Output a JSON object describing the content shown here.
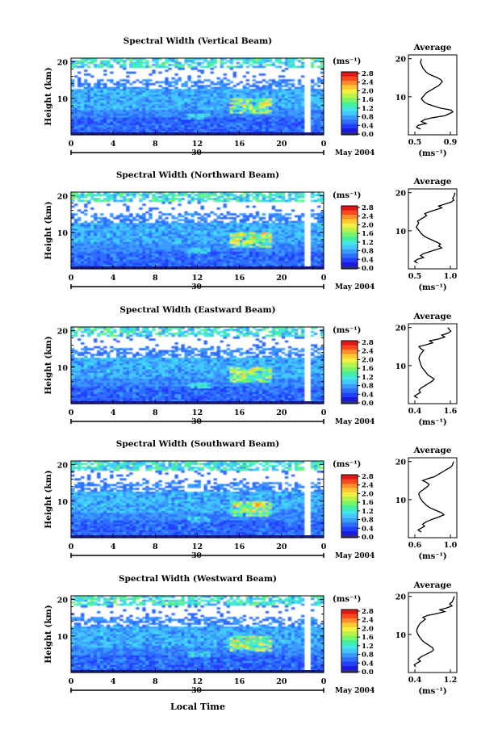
{
  "chart_data": [
    {
      "type": "heatmap",
      "title": "Spectral Width (Vertical Beam)",
      "ylabel": "Height (km)",
      "x_ticks": [
        "0",
        "4",
        "8",
        "12",
        "16",
        "20",
        "0"
      ],
      "y_ticks": [
        "20",
        "10"
      ],
      "date_label": "30",
      "month_label": "May 2004",
      "colorbar": {
        "unit": "(ms⁻¹)",
        "ticks": [
          "2.8",
          "2.4",
          "2.0",
          "1.6",
          "1.2",
          "0.8",
          "0.4",
          "0.0"
        ]
      },
      "profile": {
        "title": "Average",
        "xlabel": "(ms⁻¹)",
        "x_ticks": [
          "0.5",
          "0.9"
        ],
        "xlim": [
          0.4,
          1.0
        ],
        "y_ticks": [
          "20",
          "10"
        ],
        "x": [
          0.55,
          0.5,
          0.52,
          0.62,
          0.56,
          0.6,
          0.7,
          0.85,
          0.9,
          0.95,
          0.93,
          0.8,
          0.72,
          0.65,
          0.6,
          0.58,
          0.56,
          0.58,
          0.6,
          0.62,
          0.66,
          0.7,
          0.74,
          0.78,
          0.8,
          0.82,
          0.8,
          0.76,
          0.7,
          0.65,
          0.62,
          0.6,
          0.58,
          0.57,
          0.56,
          0.55,
          0.56
        ],
        "y": [
          1.5,
          2,
          2.5,
          3,
          3.5,
          4,
          4.5,
          5,
          5.5,
          6,
          6.5,
          7,
          7.5,
          8,
          8.5,
          9,
          9.5,
          10,
          10.5,
          11,
          11.5,
          12,
          12.5,
          13,
          13.5,
          14,
          14.5,
          15,
          15.5,
          16,
          16.5,
          17,
          17.5,
          18,
          18.5,
          19,
          20
        ]
      }
    },
    {
      "type": "heatmap",
      "title": "Spectral Width (Northward Beam)",
      "ylabel": "Height (km)",
      "x_ticks": [
        "0",
        "4",
        "8",
        "12",
        "16",
        "20",
        "0"
      ],
      "y_ticks": [
        "20",
        "10"
      ],
      "date_label": "30",
      "month_label": "May 2004",
      "colorbar": {
        "unit": "(ms⁻¹)",
        "ticks": [
          "2.8",
          "2.4",
          "2.0",
          "1.6",
          "1.2",
          "0.8",
          "0.4",
          "0.0"
        ]
      },
      "profile": {
        "title": "Average",
        "xlabel": "(ms⁻¹)",
        "x_ticks": [
          "0.5",
          "1.0"
        ],
        "xlim": [
          0.35,
          1.15
        ],
        "y_ticks": [
          "20",
          "10"
        ],
        "x": [
          0.5,
          0.45,
          0.5,
          0.6,
          0.55,
          0.6,
          0.7,
          0.8,
          0.9,
          0.85,
          0.88,
          0.82,
          0.75,
          0.68,
          0.62,
          0.58,
          0.55,
          0.53,
          0.5,
          0.48,
          0.5,
          0.52,
          0.5,
          0.55,
          0.6,
          0.65,
          0.62,
          0.7,
          0.8,
          0.9,
          0.85,
          0.95,
          1.05,
          1.1,
          1.08,
          1.1,
          1.12
        ],
        "y": [
          1.5,
          2,
          2.5,
          3,
          3.5,
          4,
          4.5,
          5,
          5.5,
          6,
          6.5,
          7,
          7.5,
          8,
          8.5,
          9,
          9.5,
          10,
          10.5,
          11,
          11.5,
          12,
          12.5,
          13,
          13.5,
          14,
          14.5,
          15,
          15.5,
          16,
          16.5,
          17,
          17.5,
          18,
          18.5,
          19,
          20
        ]
      }
    },
    {
      "type": "heatmap",
      "title": "Spectral Width (Eastward Beam)",
      "ylabel": "Height (km)",
      "x_ticks": [
        "0",
        "4",
        "8",
        "12",
        "16",
        "20",
        "0"
      ],
      "y_ticks": [
        "20",
        "10"
      ],
      "date_label": "30",
      "month_label": "May 2004",
      "colorbar": {
        "unit": "(ms⁻¹)",
        "ticks": [
          "2.8",
          "2.4",
          "2.0",
          "1.6",
          "1.2",
          "0.8",
          "0.4",
          "0.0"
        ]
      },
      "profile": {
        "title": "Average",
        "xlabel": "(ms⁻¹)",
        "x_ticks": [
          "0.4",
          "1.6"
        ],
        "xlim": [
          0.2,
          1.8
        ],
        "y_ticks": [
          "20",
          "10"
        ],
        "x": [
          0.5,
          0.4,
          0.5,
          0.6,
          0.55,
          0.6,
          0.7,
          0.8,
          0.9,
          1.0,
          1.05,
          0.95,
          0.85,
          0.8,
          0.75,
          0.7,
          0.65,
          0.62,
          0.6,
          0.58,
          0.56,
          0.55,
          0.57,
          0.6,
          0.65,
          0.7,
          0.6,
          0.55,
          0.8,
          1.0,
          0.9,
          1.2,
          1.4,
          1.3,
          1.5,
          1.6,
          1.5
        ],
        "y": [
          1.5,
          2,
          2.5,
          3,
          3.5,
          4,
          4.5,
          5,
          5.5,
          6,
          6.5,
          7,
          7.5,
          8,
          8.5,
          9,
          9.5,
          10,
          10.5,
          11,
          11.5,
          12,
          12.5,
          13,
          13.5,
          14,
          14.5,
          15,
          15.5,
          16,
          16.5,
          17,
          17.5,
          18,
          18.5,
          19,
          20
        ]
      }
    },
    {
      "type": "heatmap",
      "title": "Spectral Width (Southward Beam)",
      "ylabel": "Height (km)",
      "x_ticks": [
        "0",
        "4",
        "8",
        "12",
        "16",
        "20",
        "0"
      ],
      "y_ticks": [
        "20",
        "10"
      ],
      "date_label": "30",
      "month_label": "May 2004",
      "colorbar": {
        "unit": "(ms⁻¹)",
        "ticks": [
          "2.8",
          "2.4",
          "2.0",
          "1.6",
          "1.2",
          "0.8",
          "0.4",
          "0.0"
        ]
      },
      "profile": {
        "title": "Average",
        "xlabel": "(ms⁻¹)",
        "x_ticks": [
          "0.6",
          "1.0"
        ],
        "xlim": [
          0.4,
          1.15
        ],
        "y_ticks": [
          "20",
          "10"
        ],
        "x": [
          0.6,
          0.55,
          0.6,
          0.65,
          0.62,
          0.66,
          0.72,
          0.8,
          0.88,
          0.95,
          0.92,
          0.85,
          0.78,
          0.72,
          0.68,
          0.65,
          0.62,
          0.6,
          0.58,
          0.57,
          0.56,
          0.58,
          0.62,
          0.66,
          0.7,
          0.72,
          0.68,
          0.62,
          0.7,
          0.8,
          0.85,
          0.9,
          0.95,
          1.0,
          1.05,
          1.08,
          1.1
        ],
        "y": [
          1.5,
          2,
          2.5,
          3,
          3.5,
          4,
          4.5,
          5,
          5.5,
          6,
          6.5,
          7,
          7.5,
          8,
          8.5,
          9,
          9.5,
          10,
          10.5,
          11,
          11.5,
          12,
          12.5,
          13,
          13.5,
          14,
          14.5,
          15,
          15.5,
          16,
          16.5,
          17,
          17.5,
          18,
          18.5,
          19,
          20
        ]
      }
    },
    {
      "type": "heatmap",
      "title": "Spectral Width (Westward Beam)",
      "ylabel": "Height (km)",
      "x_ticks": [
        "0",
        "4",
        "8",
        "12",
        "16",
        "20",
        "0"
      ],
      "y_ticks": [
        "20",
        "10"
      ],
      "date_label": "30",
      "month_label": "May 2004",
      "colorbar": {
        "unit": "(ms⁻¹)",
        "ticks": [
          "2.8",
          "2.4",
          "2.0",
          "1.6",
          "1.2",
          "0.8",
          "0.4",
          "0.0"
        ]
      },
      "profile": {
        "title": "Average",
        "xlabel": "(ms⁻¹)",
        "x_ticks": [
          "0.4",
          "1.2"
        ],
        "xlim": [
          0.3,
          1.3
        ],
        "y_ticks": [
          "20",
          "10"
        ],
        "x": [
          0.45,
          0.42,
          0.48,
          0.55,
          0.5,
          0.55,
          0.62,
          0.7,
          0.78,
          0.82,
          0.8,
          0.74,
          0.68,
          0.62,
          0.58,
          0.55,
          0.52,
          0.5,
          0.48,
          0.47,
          0.48,
          0.5,
          0.52,
          0.55,
          0.6,
          0.65,
          0.6,
          0.7,
          0.9,
          1.05,
          0.95,
          1.1,
          1.2,
          1.15,
          1.2,
          1.22,
          1.25
        ],
        "y": [
          1.5,
          2,
          2.5,
          3,
          3.5,
          4,
          4.5,
          5,
          5.5,
          6,
          6.5,
          7,
          7.5,
          8,
          8.5,
          9,
          9.5,
          10,
          10.5,
          11,
          11.5,
          12,
          12.5,
          13,
          13.5,
          14,
          14.5,
          15,
          15.5,
          16,
          16.5,
          17,
          17.5,
          18,
          18.5,
          19,
          20
        ]
      }
    }
  ],
  "footer": {
    "xlabel": "Local Time"
  }
}
